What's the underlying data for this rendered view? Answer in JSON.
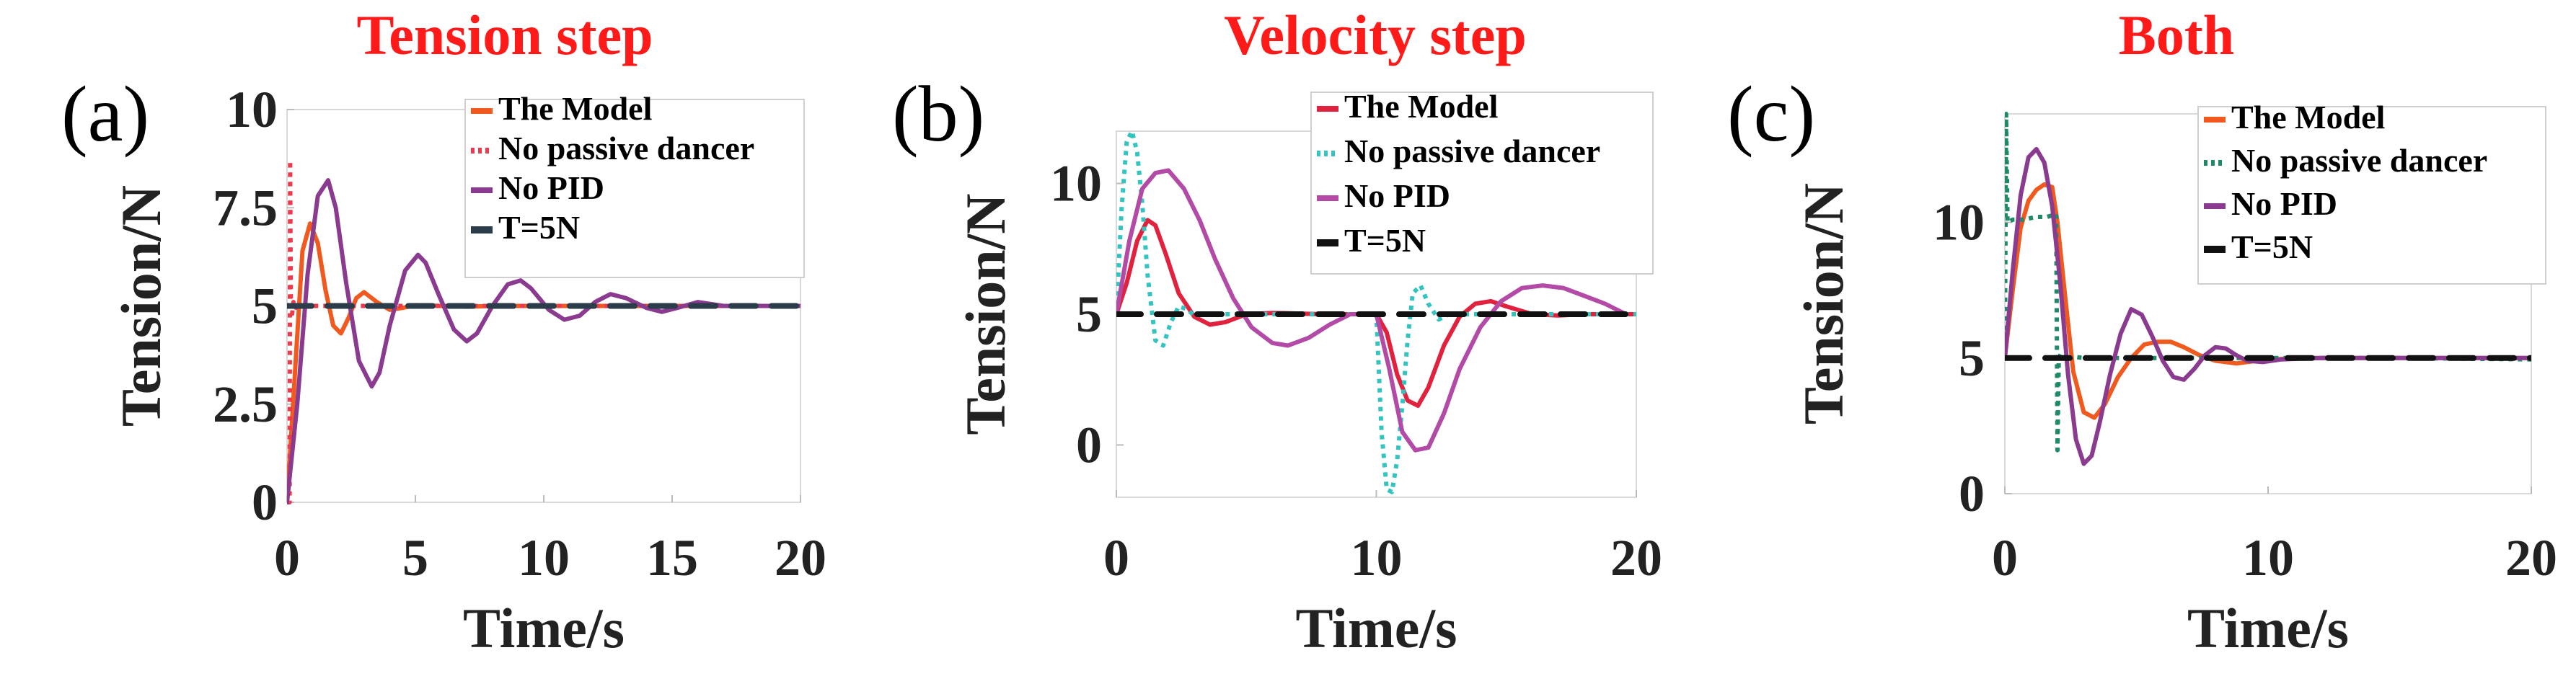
{
  "chart_data": [
    {
      "type": "line",
      "panel_label": "(a)",
      "title": "Tension step",
      "xlabel": "Time/s",
      "ylabel": "Tension/N",
      "xlim": [
        0,
        20
      ],
      "ylim": [
        0,
        10
      ],
      "xticks": [
        0,
        5,
        10,
        15,
        20
      ],
      "xtick_labels": [
        "0",
        "5",
        "10",
        "15",
        "20"
      ],
      "yticks": [
        0,
        2.5,
        5,
        7.5,
        10
      ],
      "ytick_labels": [
        "0",
        "2.5",
        "5",
        "7.5",
        "10"
      ],
      "legend": "top-right",
      "series": [
        {
          "name": "The Model",
          "color": "#f05a1e",
          "dash": "solid",
          "x": [
            0,
            0.3,
            0.6,
            0.9,
            1.2,
            1.5,
            1.8,
            2.1,
            2.4,
            2.7,
            3.0,
            3.5,
            4.0,
            4.5,
            5.0,
            6.0,
            7.0,
            8.0,
            10,
            20
          ],
          "y": [
            0,
            3.2,
            6.4,
            7.1,
            6.6,
            5.4,
            4.5,
            4.3,
            4.7,
            5.2,
            5.35,
            5.1,
            4.9,
            4.95,
            5.02,
            5.0,
            4.98,
            5.0,
            5.0,
            5.0
          ]
        },
        {
          "name": "No passive dancer",
          "color": "#ee3a4d",
          "dash": "dot",
          "x": [
            0,
            0.1,
            0.12,
            0.15,
            0.2,
            0.25,
            0.35,
            0.5,
            1,
            20
          ],
          "y": [
            0,
            0,
            8.7,
            5.2,
            4.8,
            5.1,
            4.95,
            5.0,
            5.0,
            5.0
          ]
        },
        {
          "name": "No PID",
          "color": "#8b3b8f",
          "dash": "solid",
          "x": [
            0,
            0.4,
            0.8,
            1.2,
            1.6,
            1.9,
            2.3,
            2.8,
            3.3,
            3.6,
            4.0,
            4.6,
            5.1,
            5.4,
            5.9,
            6.5,
            7.0,
            7.4,
            8.0,
            8.6,
            9.1,
            9.5,
            10.2,
            10.8,
            11.4,
            12.0,
            12.6,
            13.2,
            14.0,
            14.6,
            15.2,
            16.0,
            17.0,
            18.0,
            20
          ],
          "y": [
            0,
            2.5,
            5.8,
            7.8,
            8.2,
            7.5,
            5.6,
            3.6,
            2.95,
            3.3,
            4.5,
            5.9,
            6.3,
            6.1,
            5.3,
            4.4,
            4.1,
            4.3,
            5.0,
            5.55,
            5.65,
            5.45,
            4.9,
            4.65,
            4.75,
            5.1,
            5.3,
            5.2,
            4.95,
            4.85,
            4.95,
            5.1,
            5.0,
            5.0,
            5.0
          ]
        },
        {
          "name": "T=5N",
          "color": "#2b3c4a",
          "dash": "dash",
          "x": [
            0,
            20
          ],
          "y": [
            5,
            5
          ]
        }
      ]
    },
    {
      "type": "line",
      "panel_label": "(b)",
      "title": "Velocity step",
      "xlabel": "Time/s",
      "ylabel": "Tension/N",
      "xlim": [
        0,
        20
      ],
      "ylim": [
        -2,
        12
      ],
      "xticks": [
        0,
        10,
        20
      ],
      "xtick_labels": [
        "0",
        "10",
        "20"
      ],
      "yticks": [
        0,
        5,
        10
      ],
      "ytick_labels": [
        "0",
        "5",
        "10"
      ],
      "legend": "top-right",
      "series": [
        {
          "name": "The Model",
          "color": "#e0223f",
          "dash": "solid",
          "x": [
            0,
            0.4,
            0.8,
            1.2,
            1.5,
            1.9,
            2.4,
            3.0,
            3.6,
            4.2,
            5.0,
            6.0,
            8.0,
            10.0,
            10.4,
            10.8,
            11.2,
            11.6,
            12.0,
            12.6,
            13.2,
            13.8,
            14.4,
            15.0,
            16.0,
            17.0,
            18.0,
            20
          ],
          "y": [
            5,
            6.2,
            7.8,
            8.6,
            8.4,
            7.3,
            5.8,
            4.9,
            4.6,
            4.7,
            5.0,
            5.05,
            5.0,
            5.0,
            4.3,
            2.7,
            1.7,
            1.5,
            2.2,
            3.8,
            4.9,
            5.4,
            5.5,
            5.3,
            5.0,
            4.95,
            5.0,
            5.0
          ]
        },
        {
          "name": "No passive dancer",
          "color": "#33c4c0",
          "dash": "dot",
          "x": [
            0,
            0.2,
            0.4,
            0.6,
            0.8,
            1.0,
            1.2,
            1.5,
            1.8,
            2.1,
            2.4,
            2.7,
            3.0,
            3.5,
            4.0,
            10.0,
            10.2,
            10.4,
            10.6,
            10.8,
            11.0,
            11.2,
            11.4,
            11.7,
            12.0,
            12.4,
            12.8,
            13.2,
            14.0,
            20
          ],
          "y": [
            5,
            9.0,
            11.6,
            12.0,
            11.2,
            9.2,
            6.5,
            4.0,
            3.8,
            4.7,
            5.3,
            5.2,
            4.95,
            5.0,
            5.0,
            5.0,
            0.5,
            -1.7,
            -1.8,
            -0.6,
            1.5,
            4.0,
            5.8,
            6.1,
            5.4,
            4.8,
            5.0,
            5.0,
            5.0,
            5.0
          ]
        },
        {
          "name": "No PID",
          "color": "#b24aa6",
          "dash": "solid",
          "x": [
            0,
            0.5,
            1.0,
            1.5,
            2.0,
            2.6,
            3.2,
            3.8,
            4.5,
            5.2,
            6.0,
            6.6,
            7.4,
            8.2,
            9.0,
            10.0,
            10.5,
            11.0,
            11.5,
            12.0,
            12.6,
            13.2,
            14.0,
            14.8,
            15.6,
            16.4,
            17.2,
            18.0,
            18.8,
            19.6
          ],
          "y": [
            5,
            7.8,
            9.8,
            10.4,
            10.5,
            9.8,
            8.6,
            7.1,
            5.6,
            4.5,
            3.9,
            3.8,
            4.1,
            4.6,
            5.0,
            5.0,
            2.9,
            0.5,
            -0.2,
            -0.1,
            1.2,
            2.9,
            4.5,
            5.5,
            6.0,
            6.1,
            6.0,
            5.7,
            5.4,
            5.0
          ]
        },
        {
          "name": "T=5N",
          "color": "#111111",
          "dash": "dash",
          "x": [
            0,
            20
          ],
          "y": [
            5,
            5
          ]
        }
      ]
    },
    {
      "type": "line",
      "panel_label": "(c)",
      "title": "Both",
      "xlabel": "Time/s",
      "ylabel": "Tension/N",
      "xlim": [
        0,
        20
      ],
      "ylim": [
        0,
        14
      ],
      "xticks": [
        0,
        10,
        20
      ],
      "xtick_labels": [
        "0",
        "10",
        "20"
      ],
      "yticks": [
        0,
        5,
        10
      ],
      "ytick_labels": [
        "0",
        "5",
        "10"
      ],
      "legend": "top-right",
      "series": [
        {
          "name": "The Model",
          "color": "#f05a1e",
          "dash": "solid",
          "x": [
            0,
            0.3,
            0.6,
            0.9,
            1.2,
            1.5,
            1.8,
            2.0,
            2.3,
            2.6,
            3.0,
            3.4,
            3.8,
            4.3,
            4.8,
            5.3,
            5.8,
            6.3,
            6.8,
            7.4,
            8.0,
            8.8,
            9.6,
            11,
            13,
            15,
            20
          ],
          "y": [
            5,
            7.5,
            9.8,
            10.8,
            11.2,
            11.4,
            11.3,
            10.0,
            7.2,
            4.5,
            3.0,
            2.8,
            3.3,
            4.3,
            5.0,
            5.5,
            5.6,
            5.6,
            5.4,
            5.1,
            4.9,
            4.8,
            4.9,
            5.0,
            5.0,
            5.0,
            5.0
          ]
        },
        {
          "name": "No passive dancer",
          "color": "#1f8a6a",
          "dash": "dot",
          "x": [
            0,
            0.05,
            0.1,
            0.3,
            0.7,
            1.2,
            1.6,
            1.95,
            2.0,
            2.05,
            2.15,
            2.3,
            2.6,
            3.0,
            4.0,
            10,
            15,
            20
          ],
          "y": [
            5,
            14.0,
            10.0,
            10.1,
            10.1,
            10.2,
            10.2,
            10.3,
            1.6,
            5.0,
            5.2,
            4.9,
            5.05,
            5.0,
            5.0,
            5.0,
            5.0,
            4.95
          ]
        },
        {
          "name": "No PID",
          "color": "#8b3b8f",
          "dash": "solid",
          "x": [
            0,
            0.3,
            0.6,
            0.9,
            1.2,
            1.5,
            1.8,
            2.1,
            2.4,
            2.7,
            3.0,
            3.3,
            3.6,
            4.0,
            4.4,
            4.8,
            5.2,
            5.6,
            6.0,
            6.4,
            6.8,
            7.2,
            7.6,
            8.0,
            8.4,
            8.8,
            9.2,
            9.8,
            10.5,
            12,
            20
          ],
          "y": [
            5,
            8.2,
            11.0,
            12.4,
            12.7,
            12.2,
            10.6,
            7.8,
            4.4,
            2.0,
            1.1,
            1.4,
            2.6,
            4.4,
            5.9,
            6.8,
            6.6,
            5.8,
            4.9,
            4.3,
            4.2,
            4.6,
            5.1,
            5.4,
            5.35,
            5.1,
            4.9,
            4.85,
            4.95,
            5.0,
            5.0
          ]
        },
        {
          "name": "T=5N",
          "color": "#111111",
          "dash": "dash",
          "x": [
            0,
            20
          ],
          "y": [
            5,
            5
          ]
        }
      ]
    }
  ]
}
